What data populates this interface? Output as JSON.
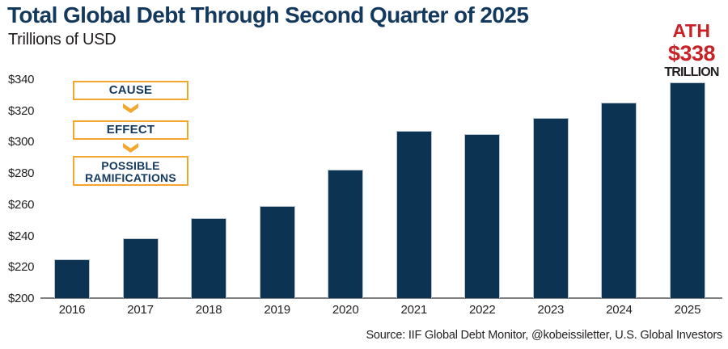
{
  "header": {
    "title": "Total Global Debt Through Second Quarter of 2025",
    "subtitle": "Trillions of USD"
  },
  "annotation": {
    "ath_label": "ATH",
    "ath_value": "$338",
    "ath_unit": "TRILLION"
  },
  "flow": {
    "cause": "CAUSE",
    "effect": "EFFECT",
    "ramifications_line1": "POSSIBLE",
    "ramifications_line2": "RAMIFICATIONS"
  },
  "source": "Source: IIF Global Debt Monitor, @kobeissiletter, U.S. Global Investors",
  "colors": {
    "bar_navy": "#0d3353",
    "title_navy": "#14395e",
    "accent_orange": "#f5a62f",
    "ath_red": "#c82127",
    "text_black": "#231f20",
    "axis_gray": "#7f7f7f"
  },
  "chart_data": {
    "type": "bar",
    "title": "Total Global Debt Through Second Quarter of 2025",
    "subtitle": "Trillions of USD",
    "categories": [
      "2016",
      "2017",
      "2018",
      "2019",
      "2020",
      "2021",
      "2022",
      "2023",
      "2024",
      "2025"
    ],
    "values": [
      225,
      238,
      251,
      259,
      282,
      307,
      305,
      315,
      325,
      338
    ],
    "unit": "Trillions of USD",
    "xlabel": "",
    "ylabel": "",
    "ylim": [
      200,
      340
    ],
    "ytick_step": 20,
    "ytick_labels": [
      "$200",
      "$220",
      "$240",
      "$260",
      "$280",
      "$300",
      "$320",
      "$340"
    ],
    "grid": false,
    "legend": "none",
    "annotation": "ATH $338 TRILLION above 2025 bar"
  }
}
